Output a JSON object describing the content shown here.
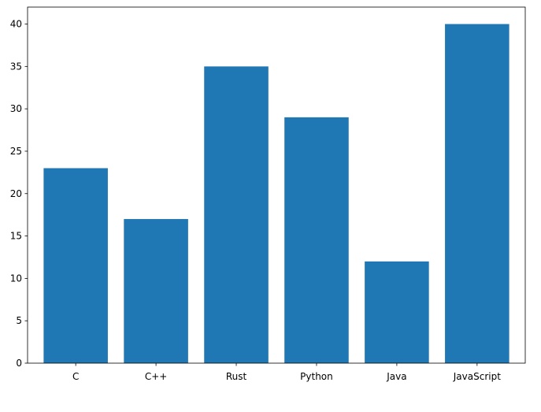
{
  "chart_data": {
    "type": "bar",
    "title": "",
    "xlabel": "",
    "ylabel": "",
    "categories": [
      "C",
      "C++",
      "Rust",
      "Python",
      "Java",
      "JavaScript"
    ],
    "values": [
      23,
      17,
      35,
      29,
      12,
      40
    ],
    "ylim": [
      0,
      42
    ],
    "yticks": [
      0,
      5,
      10,
      15,
      20,
      25,
      30,
      35,
      40
    ],
    "bar_color": "#1f77b4",
    "grid": false,
    "legend": "none"
  }
}
